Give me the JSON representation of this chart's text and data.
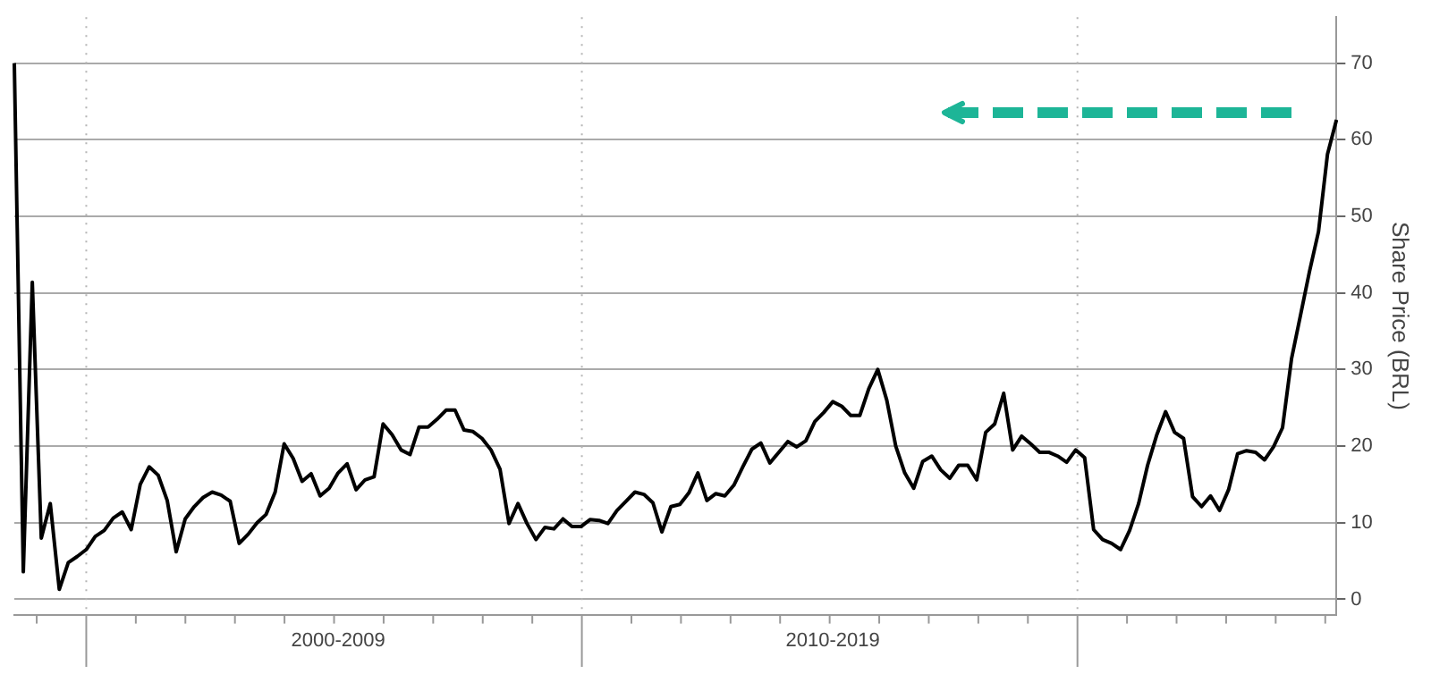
{
  "chart_data": {
    "type": "line",
    "ylabel": "Share Price (BRL)",
    "categories": [
      null,
      null,
      null,
      null,
      null,
      null,
      null,
      null,
      null,
      null,
      null,
      null,
      null,
      null,
      null,
      null,
      null,
      null,
      null,
      null,
      null,
      null,
      null,
      null,
      null,
      null,
      null,
      null,
      null,
      null,
      null,
      null,
      null,
      null,
      null,
      null,
      "2000-2009",
      null,
      null,
      null,
      null,
      null,
      null,
      null,
      null,
      null,
      null,
      null,
      null,
      null,
      null,
      null,
      null,
      null,
      null,
      null,
      null,
      null,
      null,
      null,
      null,
      null,
      null,
      null,
      null,
      null,
      null,
      null,
      null,
      null,
      null,
      null,
      null,
      null,
      null,
      null,
      null,
      null,
      null,
      null,
      null,
      null,
      null,
      null,
      null,
      null,
      null,
      null,
      null,
      null,
      null,
      "2010-2019",
      null,
      null,
      null,
      null,
      null,
      null,
      null,
      null,
      null,
      null,
      null,
      null,
      null,
      null,
      null,
      null,
      null,
      null,
      null,
      null,
      null,
      null,
      null,
      null,
      null,
      null,
      null,
      null,
      null,
      null,
      null,
      null,
      null,
      null,
      null,
      null,
      null,
      null,
      null,
      null,
      null,
      null,
      null,
      null,
      null,
      null,
      null,
      null,
      null,
      null,
      null,
      null,
      null,
      null,
      null,
      null
    ],
    "ylim": [
      -2,
      76
    ],
    "yticks": [
      0,
      10,
      20,
      30,
      40,
      50,
      60,
      70
    ],
    "grid": "y",
    "legend": false,
    "marker": "none",
    "line_style": "solid",
    "series": [
      {
        "color": "#000000",
        "values": [
          70,
          3.6,
          41.4,
          8,
          12.5,
          1.3,
          4.8,
          5.6,
          6.5,
          8.2,
          9.0,
          10.6,
          11.4,
          9.1,
          15.0,
          17.3,
          16.2,
          12.9,
          6.2,
          10.5,
          12.1,
          13.3,
          14.0,
          13.6,
          12.8,
          7.3,
          8.5,
          10.0,
          11.1,
          14.0,
          20.3,
          18.4,
          15.4,
          16.4,
          13.5,
          14.5,
          16.5,
          17.7,
          14.3,
          15.6,
          16.0,
          22.9,
          21.5,
          19.5,
          18.9,
          22.5,
          22.5,
          23.5,
          24.7,
          24.7,
          22.1,
          21.9,
          21.0,
          19.5,
          17.0,
          9.9,
          12.5,
          9.9,
          7.8,
          9.4,
          9.2,
          10.5,
          9.5,
          9.5,
          10.4,
          10.3,
          9.9,
          11.6,
          12.8,
          14.0,
          13.7,
          12.6,
          8.8,
          12.1,
          12.4,
          13.9,
          16.5,
          12.9,
          13.8,
          13.5,
          14.9,
          17.3,
          19.6,
          20.4,
          17.8,
          19.2,
          20.6,
          19.9,
          20.7,
          23.2,
          24.4,
          25.8,
          25.2,
          24.0,
          24.0,
          27.5,
          30.0,
          26.0,
          20.0,
          16.5,
          14.5,
          18.0,
          18.7,
          16.9,
          15.8,
          17.5,
          17.5,
          15.6,
          21.8,
          22.9,
          26.9,
          19.5,
          21.3,
          20.3,
          19.2,
          19.2,
          18.7,
          17.9,
          19.5,
          18.5,
          9.1,
          7.8,
          7.3,
          6.5,
          9.0,
          12.5,
          17.5,
          21.4,
          24.5,
          21.8,
          21.0,
          13.4,
          12.1,
          13.5,
          11.6,
          14.3,
          19.0,
          19.4,
          19.2,
          18.2,
          19.9,
          22.4,
          31.4,
          37.1,
          42.8,
          48,
          58.1,
          62.6
        ]
      }
    ]
  }
}
